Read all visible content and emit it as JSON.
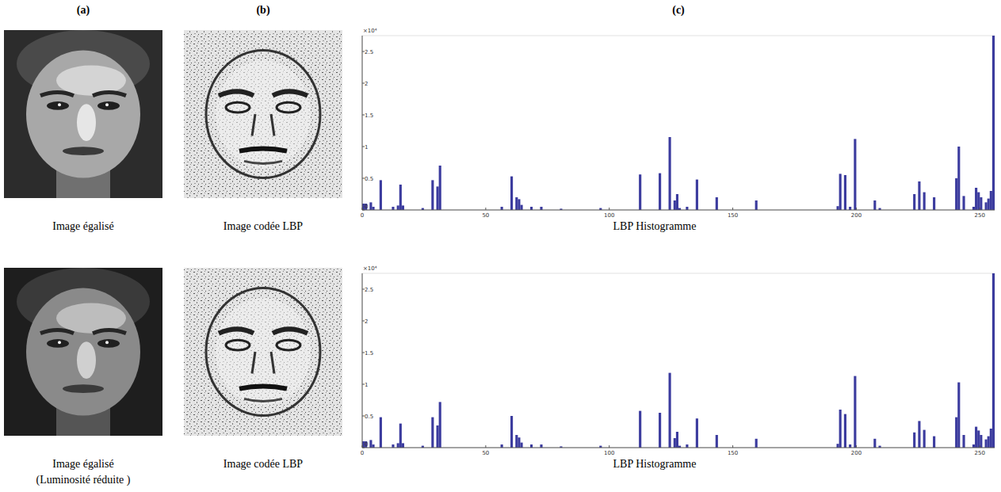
{
  "panel_labels": [
    "(a)",
    "(b)",
    "(c)"
  ],
  "rows": [
    {
      "image_caption": [
        "Image égalisé"
      ],
      "lbp_caption": "Image codée LBP"
    },
    {
      "image_caption": [
        "Image égalisé",
        "(Luminosité réduite )"
      ],
      "lbp_caption": "Image codée LBP"
    }
  ],
  "chart_data": [
    {
      "type": "bar",
      "x_label": "LBP Histogramme",
      "y_multiplier": "×10⁴",
      "color": "#3b3b9e",
      "grid": false,
      "xlim": [
        0,
        256
      ],
      "ylim": [
        0,
        2.75
      ],
      "xticks": [
        0,
        50,
        100,
        150,
        200,
        250
      ],
      "yticks": [
        0,
        0.5,
        1,
        1.5,
        2,
        2.5
      ],
      "x": [
        0,
        1,
        3,
        4,
        7,
        12,
        14,
        15,
        16,
        24,
        28,
        30,
        31,
        56,
        60,
        62,
        63,
        64,
        68,
        72,
        80,
        96,
        112,
        120,
        124,
        126,
        127,
        128,
        131,
        135,
        143,
        159,
        192,
        193,
        195,
        197,
        199,
        207,
        209,
        223,
        225,
        227,
        231,
        240,
        241,
        243,
        247,
        248,
        249,
        250,
        252,
        253,
        254,
        255
      ],
      "values": [
        0.1,
        0.1,
        0.12,
        0.05,
        0.47,
        0.05,
        0.07,
        0.4,
        0.07,
        0.03,
        0.47,
        0.37,
        0.7,
        0.05,
        0.53,
        0.2,
        0.17,
        0.08,
        0.05,
        0.05,
        0.02,
        0.03,
        0.56,
        0.58,
        1.15,
        0.15,
        0.25,
        0.03,
        0.05,
        0.48,
        0.2,
        0.15,
        0.06,
        0.57,
        0.55,
        0.05,
        1.12,
        0.15,
        0.03,
        0.25,
        0.45,
        0.28,
        0.2,
        0.5,
        1.0,
        0.22,
        0.05,
        0.35,
        0.28,
        0.2,
        0.12,
        0.18,
        0.3,
        2.75
      ]
    },
    {
      "type": "bar",
      "x_label": "LBP Histogramme",
      "y_multiplier": "×10⁴",
      "color": "#3b3b9e",
      "grid": false,
      "xlim": [
        0,
        256
      ],
      "ylim": [
        0,
        2.75
      ],
      "xticks": [
        0,
        50,
        100,
        150,
        200,
        250
      ],
      "yticks": [
        0,
        0.5,
        1,
        1.5,
        2,
        2.5
      ],
      "x": [
        0,
        1,
        3,
        4,
        7,
        12,
        14,
        15,
        16,
        24,
        28,
        30,
        31,
        56,
        60,
        62,
        63,
        64,
        68,
        72,
        80,
        96,
        112,
        120,
        124,
        126,
        127,
        128,
        131,
        135,
        143,
        159,
        192,
        193,
        195,
        197,
        199,
        207,
        209,
        223,
        225,
        227,
        231,
        240,
        241,
        243,
        247,
        248,
        249,
        250,
        252,
        253,
        254,
        255
      ],
      "values": [
        0.1,
        0.1,
        0.12,
        0.05,
        0.48,
        0.05,
        0.07,
        0.38,
        0.07,
        0.03,
        0.48,
        0.35,
        0.72,
        0.05,
        0.5,
        0.2,
        0.16,
        0.08,
        0.05,
        0.05,
        0.02,
        0.03,
        0.58,
        0.55,
        1.18,
        0.15,
        0.25,
        0.03,
        0.05,
        0.46,
        0.2,
        0.14,
        0.06,
        0.6,
        0.53,
        0.05,
        1.13,
        0.14,
        0.03,
        0.24,
        0.42,
        0.28,
        0.18,
        0.48,
        1.03,
        0.2,
        0.05,
        0.33,
        0.27,
        0.2,
        0.13,
        0.18,
        0.3,
        2.75
      ]
    }
  ]
}
